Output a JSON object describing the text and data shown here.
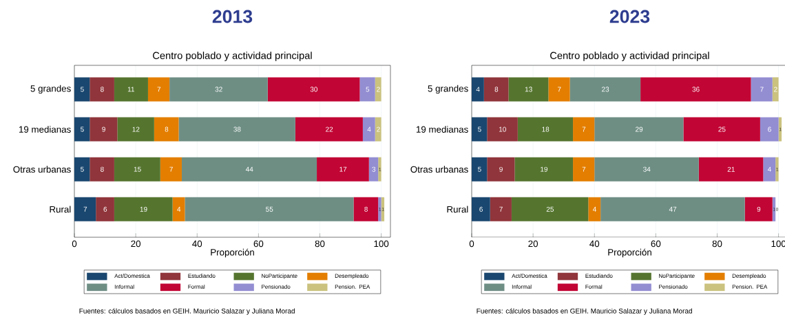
{
  "chart_data": [
    {
      "type": "bar",
      "orientation": "horizontal",
      "stacked": true,
      "title": "2013",
      "subtitle": "Centro poblado y actividad principal",
      "xlabel": "Proporción",
      "categories": [
        "5 grandes",
        "19 medianas",
        "Otras urbanas",
        "Rural"
      ],
      "series": [
        {
          "name": "Act/Domestica",
          "color": "#1a476f",
          "values": [
            5,
            5,
            5,
            7
          ]
        },
        {
          "name": "Estudiando",
          "color": "#90353b",
          "values": [
            8,
            9,
            8,
            6
          ]
        },
        {
          "name": "NoParticipante",
          "color": "#55752f",
          "values": [
            11,
            12,
            15,
            19
          ]
        },
        {
          "name": "Desempleado",
          "color": "#e37e00",
          "values": [
            7,
            8,
            7,
            4
          ]
        },
        {
          "name": "Informal",
          "color": "#6e8e84",
          "values": [
            32,
            38,
            44,
            55
          ]
        },
        {
          "name": "Formal",
          "color": "#c10534",
          "values": [
            30,
            22,
            17,
            8
          ]
        },
        {
          "name": "Pensionado",
          "color": "#938dd2",
          "values": [
            5,
            4,
            3,
            1
          ]
        },
        {
          "name": "Pension. PEA",
          "color": "#cac27e",
          "values": [
            2,
            2,
            1,
            1
          ]
        }
      ],
      "xlim": [
        0,
        103
      ],
      "xticks": [
        0,
        20,
        40,
        60,
        80,
        100
      ],
      "grid": "x",
      "legend": "bottom",
      "data_labels": true,
      "annotations": [
        "Fuentes: cálculos basados en GEIH. Mauricio Salazar y Juliana Morad"
      ]
    },
    {
      "type": "bar",
      "orientation": "horizontal",
      "stacked": true,
      "title": "2023",
      "subtitle": "Centro poblado y actividad principal",
      "xlabel": "Proporción",
      "categories": [
        "5 grandes",
        "19 medianas",
        "Otras urbanas",
        "Rural"
      ],
      "series": [
        {
          "name": "Act/Domestica",
          "color": "#1a476f",
          "values": [
            4,
            5,
            5,
            6
          ]
        },
        {
          "name": "Estudiando",
          "color": "#90353b",
          "values": [
            8,
            10,
            9,
            7
          ]
        },
        {
          "name": "NoParticipante",
          "color": "#55752f",
          "values": [
            13,
            18,
            19,
            25
          ]
        },
        {
          "name": "Desempleado",
          "color": "#e37e00",
          "values": [
            7,
            7,
            7,
            4
          ]
        },
        {
          "name": "Informal",
          "color": "#6e8e84",
          "values": [
            23,
            29,
            34,
            47
          ]
        },
        {
          "name": "Formal",
          "color": "#c10534",
          "values": [
            36,
            25,
            21,
            9
          ]
        },
        {
          "name": "Pensionado",
          "color": "#938dd2",
          "values": [
            7,
            6,
            4,
            1
          ]
        },
        {
          "name": "Pension. PEA",
          "color": "#cac27e",
          "values": [
            2,
            1,
            1,
            0
          ]
        }
      ],
      "xlim": [
        0,
        103
      ],
      "xticks": [
        0,
        20,
        40,
        60,
        80,
        100
      ],
      "grid": "x",
      "legend": "bottom",
      "data_labels": true,
      "annotations": [
        "Fuentes: cálculos basados en GEIH. Mauricio Salazar y Juliana Morad"
      ]
    }
  ]
}
